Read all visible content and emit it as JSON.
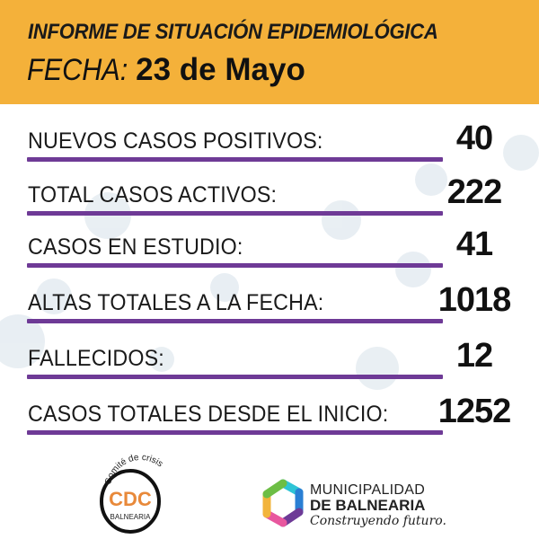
{
  "header": {
    "title": "INFORME DE SITUACIÓN EPIDEMIOLÓGICA",
    "date_label": "FECHA:",
    "date_value": "23 de Mayo"
  },
  "stats": [
    {
      "label": "NUEVOS CASOS POSITIVOS:",
      "value": "40"
    },
    {
      "label": "TOTAL CASOS ACTIVOS:",
      "value": "222"
    },
    {
      "label": "CASOS EN ESTUDIO:",
      "value": "41"
    },
    {
      "label": "ALTAS TOTALES A LA FECHA:",
      "value": "1018"
    },
    {
      "label": "FALLECIDOS:",
      "value": "12"
    },
    {
      "label": "CASOS TOTALES DESDE EL INICIO:",
      "value": "1252"
    }
  ],
  "logos": {
    "cdc": {
      "arc_text": "Comité de crisis",
      "acronym": "CDC",
      "name": "BALNEARIA"
    },
    "municipality": {
      "line1": "MUNICIPALIDAD",
      "line2": "DE BALNEARIA",
      "slogan": "Construyendo futuro."
    }
  },
  "colors": {
    "header": "#F4B13A",
    "underline": "#6E3A96",
    "cdc": "#E8893A"
  }
}
